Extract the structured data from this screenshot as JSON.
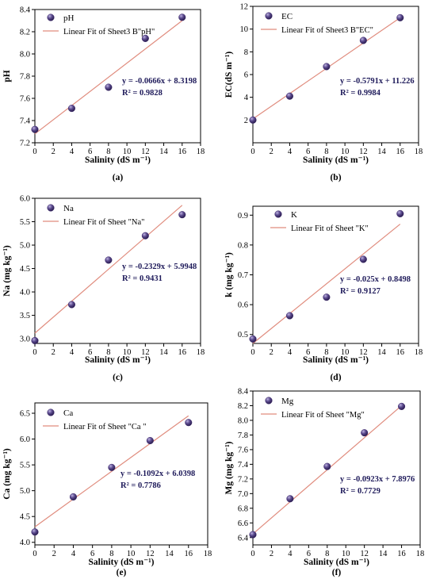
{
  "chart_data": [
    {
      "panel": "(a)",
      "type": "scatter",
      "xlabel": "Salinity (dS m⁻¹)",
      "ylabel": "pH",
      "xlim": [
        0,
        18
      ],
      "ylim": [
        7.2,
        8.4
      ],
      "xticks": [
        0,
        2,
        4,
        6,
        8,
        10,
        12,
        14,
        16,
        18
      ],
      "yticks": [
        7.2,
        7.4,
        7.6,
        7.8,
        8.0,
        8.2,
        8.4
      ],
      "yprec": 1,
      "x": [
        0,
        4,
        8,
        12,
        16
      ],
      "y": [
        7.32,
        7.51,
        7.7,
        8.14,
        8.33
      ],
      "fit": {
        "from": [
          0,
          7.28
        ],
        "to": [
          16,
          8.3
        ]
      },
      "legend": [
        "pH",
        "Linear Fit of Sheet3 B\"pH\""
      ],
      "equation": "y = -0.0666x + 8.3198",
      "r2": "R² = 0.9828"
    },
    {
      "panel": "(b)",
      "type": "scatter",
      "xlabel": "Salinity (dS m⁻¹)",
      "ylabel": "EC(dS m⁻¹)",
      "xlim": [
        0,
        18
      ],
      "ylim": [
        0,
        12
      ],
      "xticks": [
        0,
        2,
        4,
        6,
        8,
        10,
        12,
        14,
        16,
        18
      ],
      "yticks": [
        2,
        4,
        6,
        8,
        10,
        12
      ],
      "yprec": 0,
      "x": [
        0,
        4,
        8,
        12,
        16
      ],
      "y": [
        2.0,
        4.1,
        6.7,
        9.0,
        11.0
      ],
      "fit": {
        "from": [
          0,
          2.1
        ],
        "to": [
          16,
          11.0
        ]
      },
      "legend": [
        "EC",
        "Linear Fit of Sheet3 B\"EC\""
      ],
      "equation": "y = -0.5791x + 11.226",
      "r2": "R² = 0.9984"
    },
    {
      "panel": "(c)",
      "type": "scatter",
      "xlabel": "Salinity (dS m⁻¹)",
      "ylabel": "Na (mg kg⁻¹)",
      "xlim": [
        0,
        18
      ],
      "ylim": [
        2.9,
        6.0
      ],
      "xticks": [
        0,
        2,
        4,
        6,
        8,
        10,
        12,
        14,
        16,
        18
      ],
      "yticks": [
        3.0,
        3.5,
        4.0,
        4.5,
        5.0,
        5.5,
        6.0
      ],
      "yprec": 1,
      "x": [
        0,
        4,
        8,
        12,
        16
      ],
      "y": [
        2.96,
        3.73,
        4.68,
        5.2,
        5.65
      ],
      "fit": {
        "from": [
          0,
          3.12
        ],
        "to": [
          16,
          5.85
        ]
      },
      "legend": [
        "Na",
        "Linear Fit of Sheet \"Na\""
      ],
      "equation": "y = -0.2329x + 5.9948",
      "r2": "R² = 0.9431"
    },
    {
      "panel": "(d)",
      "type": "scatter",
      "xlabel": "Salinity (dS m⁻¹)",
      "ylabel": "k (mg kg⁻¹)",
      "xlim": [
        0,
        18
      ],
      "ylim": [
        0.47,
        0.93
      ],
      "xticks": [
        0,
        2,
        4,
        6,
        8,
        10,
        12,
        14,
        16,
        18
      ],
      "yticks": [
        0.5,
        0.6,
        0.7,
        0.8,
        0.9
      ],
      "yprec": 1,
      "x": [
        0,
        4,
        8,
        12,
        16
      ],
      "y": [
        0.485,
        0.563,
        0.625,
        0.752,
        0.905
      ],
      "fit": {
        "from": [
          0,
          0.47
        ],
        "to": [
          16,
          0.87
        ]
      },
      "legend": [
        "K",
        "Linear Fit of Sheet \"K\""
      ],
      "equation": "y = -0.025x + 0.8498",
      "r2": "R² = 0.9127"
    },
    {
      "panel": "(e)",
      "type": "scatter",
      "xlabel": "Salinity (dS m⁻¹)",
      "ylabel": "Ca (mg kg⁻¹)",
      "xlim": [
        0,
        18
      ],
      "ylim": [
        3.95,
        6.7
      ],
      "xticks": [
        0,
        2,
        4,
        6,
        8,
        10,
        12,
        14,
        16,
        18
      ],
      "yticks": [
        4.0,
        4.5,
        5.0,
        5.5,
        6.0,
        6.5
      ],
      "yprec": 1,
      "x": [
        0,
        4,
        8,
        12,
        16
      ],
      "y": [
        4.2,
        4.88,
        5.45,
        5.97,
        6.32
      ],
      "fit": {
        "from": [
          0,
          4.3
        ],
        "to": [
          16,
          6.45
        ]
      },
      "legend": [
        "Ca",
        "Linear Fit of Sheet \"Ca \""
      ],
      "equation": "y = -0.1092x + 6.0398",
      "r2": "R² = 0.7786"
    },
    {
      "panel": "(f)",
      "type": "scatter",
      "xlabel": "Salinity (dS m⁻¹)",
      "ylabel": "Mg (mg kg⁻¹)",
      "xlim": [
        0,
        18
      ],
      "ylim": [
        6.3,
        8.4
      ],
      "xticks": [
        0,
        2,
        4,
        6,
        8,
        10,
        12,
        14,
        16,
        18
      ],
      "yticks": [
        6.4,
        6.6,
        6.8,
        7.0,
        7.2,
        7.4,
        7.6,
        7.8,
        8.0,
        8.2,
        8.4
      ],
      "yprec": 1,
      "x": [
        0,
        4,
        8,
        12,
        16
      ],
      "y": [
        6.44,
        6.93,
        7.37,
        7.83,
        8.19
      ],
      "fit": {
        "from": [
          0,
          6.45
        ],
        "to": [
          16,
          8.2
        ]
      },
      "legend": [
        "Mg",
        "Linear Fit of Sheet \"Mg\""
      ],
      "equation": "y = -0.0923x + 7.8976",
      "r2": "R² = 0.7729"
    }
  ],
  "colors": {
    "marker_fill": "#3d2a6b",
    "marker_highlight": "#bdb2e0",
    "fit_line": "#e08c7e",
    "axis": "#000000",
    "annotation": "#1e1a5a"
  }
}
